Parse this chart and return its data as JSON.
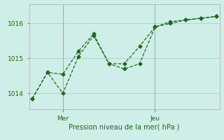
{
  "line1_x": [
    0,
    1,
    2,
    3,
    4,
    5,
    6,
    7,
    8,
    9,
    10,
    11,
    12
  ],
  "line1_y": [
    1013.85,
    1014.6,
    1014.0,
    1015.05,
    1015.65,
    1014.85,
    1014.7,
    1014.85,
    1015.9,
    1016.05,
    1016.1,
    1016.15,
    1016.2
  ],
  "line2_x": [
    0,
    1,
    2,
    3,
    4,
    5,
    6,
    7,
    8,
    9,
    10,
    11,
    12
  ],
  "line2_y": [
    1013.85,
    1014.6,
    1014.55,
    1015.2,
    1015.7,
    1014.85,
    1014.85,
    1015.35,
    1015.9,
    1016.0,
    1016.1,
    1016.15,
    1016.2
  ],
  "line_color": "#1a6b1a",
  "bg_color": "#d0eee8",
  "grid_color": "#a8d8cc",
  "xlabel": "Pression niveau de la mer( hPa )",
  "yticks": [
    1014,
    1015,
    1016
  ],
  "mer_x": 2,
  "jeu_x": 8,
  "xmin": -0.2,
  "xmax": 12.2,
  "ymin": 1013.55,
  "ymax": 1016.55
}
